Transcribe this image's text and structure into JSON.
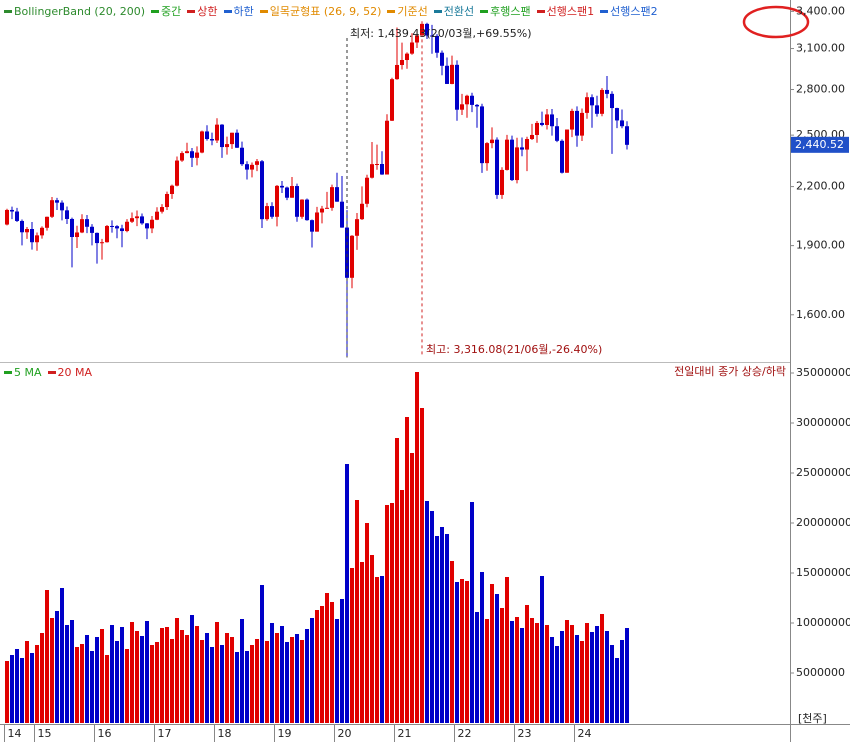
{
  "chart_data": [
    {
      "type": "candlestick",
      "legend": [
        {
          "name": "BollingerBand (20, 200)",
          "color": "#2e8b2e"
        },
        {
          "name": "중간",
          "color": "#20a020"
        },
        {
          "name": "상한",
          "color": "#d02020"
        },
        {
          "name": "하한",
          "color": "#2060d0"
        },
        {
          "name": "일목균형표 (26, 9, 52)",
          "color": "#e08a00"
        },
        {
          "name": "기준선",
          "color": "#e08a00"
        },
        {
          "name": "전환선",
          "color": "#1a7a9a"
        },
        {
          "name": "후행스팬",
          "color": "#20a020"
        },
        {
          "name": "선행스팬1",
          "color": "#d02020"
        },
        {
          "name": "선행스팬2",
          "color": "#2060d0"
        }
      ],
      "up_color": "#e00000",
      "down_color": "#0000c8",
      "log_scale": true,
      "ylim": [
        1430,
        3480
      ],
      "yticks": [
        {
          "value": 1600,
          "label": "1,600.00"
        },
        {
          "value": 1900,
          "label": "1,900.00"
        },
        {
          "value": 2200,
          "label": "2,200.00"
        },
        {
          "value": 2500,
          "label": "2,500.00"
        },
        {
          "value": 2800,
          "label": "2,800.00"
        },
        {
          "value": 3100,
          "label": "3,100.00"
        },
        {
          "value": 3400,
          "label": "3,400.00"
        }
      ],
      "last_price_label": "2,440.52",
      "annotations": {
        "low": "최저: 1,439.43(20/03월,+69.55%)",
        "high": "최고: 3,316.08(21/06월,-26.40%)"
      },
      "categories": [
        "14",
        null,
        null,
        null,
        null,
        null,
        "15",
        null,
        null,
        null,
        null,
        null,
        null,
        null,
        null,
        null,
        null,
        null,
        "16",
        null,
        null,
        null,
        null,
        null,
        null,
        null,
        null,
        null,
        null,
        null,
        "17",
        null,
        null,
        null,
        null,
        null,
        null,
        null,
        null,
        null,
        null,
        null,
        "18",
        null,
        null,
        null,
        null,
        null,
        null,
        null,
        null,
        null,
        null,
        null,
        "19",
        null,
        null,
        null,
        null,
        null,
        null,
        null,
        null,
        null,
        null,
        null,
        "20",
        null,
        null,
        null,
        null,
        null,
        null,
        null,
        null,
        null,
        null,
        null,
        "21",
        null,
        null,
        null,
        null,
        null,
        null,
        null,
        null,
        null,
        null,
        null,
        "22",
        null,
        null,
        null,
        null,
        null,
        null,
        null,
        null,
        null,
        null,
        null,
        "23",
        null,
        null,
        null,
        null,
        null,
        null,
        null,
        null,
        null,
        null,
        null,
        "24",
        null,
        null,
        null,
        null,
        null,
        null,
        null,
        null,
        null,
        null
      ],
      "candles": [
        [
          2002,
          2082,
          1998,
          2076
        ],
        [
          2076,
          2093,
          2029,
          2068
        ],
        [
          2068,
          2087,
          2015,
          2020
        ],
        [
          2020,
          2027,
          1901,
          1964
        ],
        [
          1964,
          1990,
          1932,
          1980
        ],
        [
          1980,
          2015,
          1881,
          1916
        ],
        [
          1916,
          1963,
          1876,
          1949
        ],
        [
          1949,
          1993,
          1933,
          1986
        ],
        [
          1986,
          2042,
          1972,
          2041
        ],
        [
          2041,
          2144,
          2035,
          2127
        ],
        [
          2127,
          2139,
          2076,
          2114
        ],
        [
          2114,
          2126,
          2023,
          2074
        ],
        [
          2074,
          2094,
          2005,
          2030
        ],
        [
          2030,
          2037,
          1800,
          1941
        ],
        [
          1941,
          1996,
          1889,
          1963
        ],
        [
          1963,
          2054,
          1960,
          2029
        ],
        [
          2029,
          2050,
          1960,
          1991
        ],
        [
          1991,
          2004,
          1901,
          1961
        ],
        [
          1961,
          1963,
          1817,
          1912
        ],
        [
          1912,
          1932,
          1835,
          1916
        ],
        [
          1916,
          2000,
          1914,
          1995
        ],
        [
          1995,
          2023,
          1962,
          1994
        ],
        [
          1994,
          1999,
          1935,
          1983
        ],
        [
          1983,
          2001,
          1892,
          1970
        ],
        [
          1970,
          2029,
          1964,
          2016
        ],
        [
          2016,
          2063,
          2010,
          2034
        ],
        [
          2034,
          2073,
          1994,
          2043
        ],
        [
          2043,
          2058,
          2001,
          2008
        ],
        [
          2008,
          2010,
          1931,
          1983
        ],
        [
          1983,
          2045,
          1960,
          2026
        ],
        [
          2026,
          2090,
          2024,
          2067
        ],
        [
          2067,
          2106,
          2058,
          2091
        ],
        [
          2091,
          2173,
          2076,
          2160
        ],
        [
          2160,
          2211,
          2134,
          2205
        ],
        [
          2205,
          2371,
          2201,
          2347
        ],
        [
          2347,
          2402,
          2339,
          2391
        ],
        [
          2391,
          2453,
          2390,
          2402
        ],
        [
          2402,
          2421,
          2310,
          2363
        ],
        [
          2363,
          2431,
          2319,
          2394
        ],
        [
          2394,
          2528,
          2390,
          2523
        ],
        [
          2523,
          2562,
          2466,
          2476
        ],
        [
          2476,
          2516,
          2438,
          2467
        ],
        [
          2467,
          2607,
          2452,
          2566
        ],
        [
          2566,
          2569,
          2363,
          2427
        ],
        [
          2427,
          2491,
          2382,
          2445
        ],
        [
          2445,
          2515,
          2416,
          2515
        ],
        [
          2515,
          2535,
          2421,
          2423
        ],
        [
          2423,
          2460,
          2316,
          2326
        ],
        [
          2326,
          2343,
          2239,
          2295
        ],
        [
          2295,
          2336,
          2251,
          2322
        ],
        [
          2322,
          2356,
          2286,
          2343
        ],
        [
          2343,
          2350,
          1985,
          2029
        ],
        [
          2029,
          2113,
          2021,
          2096
        ],
        [
          2096,
          2116,
          2031,
          2041
        ],
        [
          2041,
          2209,
          1993,
          2204
        ],
        [
          2204,
          2231,
          2165,
          2195
        ],
        [
          2195,
          2200,
          2127,
          2140
        ],
        [
          2140,
          2253,
          2140,
          2203
        ],
        [
          2203,
          2216,
          2016,
          2041
        ],
        [
          2041,
          2132,
          2031,
          2130
        ],
        [
          2130,
          2136,
          2021,
          2024
        ],
        [
          2024,
          2027,
          1891,
          1967
        ],
        [
          1967,
          2092,
          1967,
          2063
        ],
        [
          2063,
          2097,
          2008,
          2083
        ],
        [
          2083,
          2171,
          2083,
          2087
        ],
        [
          2087,
          2211,
          2072,
          2197
        ],
        [
          2197,
          2277,
          2119,
          2119
        ],
        [
          2119,
          2259,
          1986,
          1987
        ],
        [
          1987,
          2075,
          1439,
          1754
        ],
        [
          1754,
          1950,
          1709,
          1947
        ],
        [
          1947,
          2060,
          1880,
          2029
        ],
        [
          2029,
          2201,
          2025,
          2108
        ],
        [
          2108,
          2266,
          2090,
          2249
        ],
        [
          2249,
          2458,
          2245,
          2326
        ],
        [
          2326,
          2442,
          2294,
          2327
        ],
        [
          2327,
          2402,
          2265,
          2267
        ],
        [
          2267,
          2633,
          2267,
          2591
        ],
        [
          2591,
          2883,
          2589,
          2873
        ],
        [
          2873,
          3266,
          2869,
          2976
        ],
        [
          2976,
          3146,
          2943,
          3013
        ],
        [
          3013,
          3071,
          2948,
          3061
        ],
        [
          3061,
          3220,
          3053,
          3147
        ],
        [
          3147,
          3249,
          3104,
          3203
        ],
        [
          3203,
          3316,
          3200,
          3296
        ],
        [
          3296,
          3305,
          3174,
          3202
        ],
        [
          3202,
          3288,
          3060,
          3199
        ],
        [
          3199,
          3213,
          3030,
          3068
        ],
        [
          3068,
          3085,
          2901,
          2970
        ],
        [
          2970,
          3032,
          2839,
          2839
        ],
        [
          2839,
          3046,
          2837,
          2977
        ],
        [
          2977,
          3010,
          2591,
          2663
        ],
        [
          2663,
          2770,
          2628,
          2699
        ],
        [
          2699,
          2764,
          2610,
          2757
        ],
        [
          2757,
          2778,
          2647,
          2695
        ],
        [
          2695,
          2701,
          2546,
          2685
        ],
        [
          2685,
          2703,
          2276,
          2332
        ],
        [
          2332,
          2457,
          2288,
          2451
        ],
        [
          2451,
          2549,
          2420,
          2472
        ],
        [
          2472,
          2486,
          2134,
          2155
        ],
        [
          2155,
          2308,
          2134,
          2293
        ],
        [
          2293,
          2502,
          2290,
          2472
        ],
        [
          2472,
          2497,
          2231,
          2236
        ],
        [
          2236,
          2484,
          2218,
          2425
        ],
        [
          2425,
          2485,
          2372,
          2412
        ],
        [
          2412,
          2490,
          2286,
          2476
        ],
        [
          2476,
          2571,
          2470,
          2501
        ],
        [
          2501,
          2589,
          2453,
          2577
        ],
        [
          2577,
          2650,
          2556,
          2564
        ],
        [
          2564,
          2668,
          2535,
          2632
        ],
        [
          2632,
          2668,
          2497,
          2556
        ],
        [
          2556,
          2609,
          2457,
          2465
        ],
        [
          2465,
          2474,
          2273,
          2277
        ],
        [
          2277,
          2535,
          2277,
          2535
        ],
        [
          2535,
          2669,
          2488,
          2655
        ],
        [
          2655,
          2685,
          2429,
          2497
        ],
        [
          2497,
          2671,
          2464,
          2642
        ],
        [
          2642,
          2779,
          2604,
          2747
        ],
        [
          2747,
          2766,
          2546,
          2692
        ],
        [
          2692,
          2757,
          2618,
          2636
        ],
        [
          2636,
          2810,
          2620,
          2797
        ],
        [
          2797,
          2896,
          2740,
          2770
        ],
        [
          2770,
          2788,
          2386,
          2674
        ],
        [
          2674,
          2676,
          2544,
          2593
        ],
        [
          2593,
          2664,
          2543,
          2556
        ],
        [
          2556,
          2588,
          2412,
          2440.52
        ]
      ]
    },
    {
      "type": "bar",
      "legend": [
        {
          "name": "5 MA",
          "color": "#20a020"
        },
        {
          "name": "20 MA",
          "color": "#d02020"
        }
      ],
      "note": "전일대비 종가 상승/하락",
      "unit": "[천주]",
      "ylim": [
        0,
        35800000
      ],
      "yticks": [
        5000000,
        10000000,
        15000000,
        20000000,
        25000000,
        30000000,
        35000000
      ],
      "values": [
        6200000,
        6800000,
        7400000,
        6500000,
        8200000,
        7000000,
        7800000,
        9000000,
        13300000,
        10500000,
        11200000,
        13500000,
        9800000,
        10300000,
        7600000,
        7900000,
        8800000,
        7200000,
        8600000,
        9400000,
        6800000,
        9800000,
        8200000,
        9600000,
        7400000,
        10100000,
        9200000,
        8700000,
        10200000,
        7800000,
        8100000,
        9500000,
        9600000,
        8400000,
        10500000,
        9300000,
        8800000,
        10800000,
        9700000,
        8300000,
        9000000,
        7600000,
        10100000,
        7800000,
        9000000,
        8600000,
        7100000,
        10400000,
        7200000,
        7800000,
        8400000,
        13800000,
        8200000,
        10000000,
        9000000,
        9700000,
        8100000,
        8600000,
        8900000,
        8300000,
        9400000,
        10500000,
        11300000,
        11700000,
        13000000,
        12100000,
        10400000,
        12400000,
        25900000,
        15500000,
        22300000,
        16100000,
        20000000,
        16800000,
        14600000,
        14700000,
        21800000,
        22000000,
        28500000,
        23300000,
        30600000,
        27000000,
        35100000,
        31500000,
        22200000,
        21200000,
        18700000,
        19600000,
        18900000,
        16200000,
        14100000,
        14400000,
        14200000,
        22100000,
        11100000,
        15100000,
        10400000,
        13900000,
        12900000,
        11500000,
        14600000,
        10200000,
        10600000,
        9500000,
        11800000,
        10500000,
        10000000,
        14700000,
        9800000,
        8600000,
        7700000,
        9200000,
        10300000,
        9800000,
        8800000,
        8200000,
        10000000,
        9100000,
        9700000,
        10900000,
        9200000,
        7800000,
        6500000,
        8300000,
        9500000
      ]
    }
  ]
}
